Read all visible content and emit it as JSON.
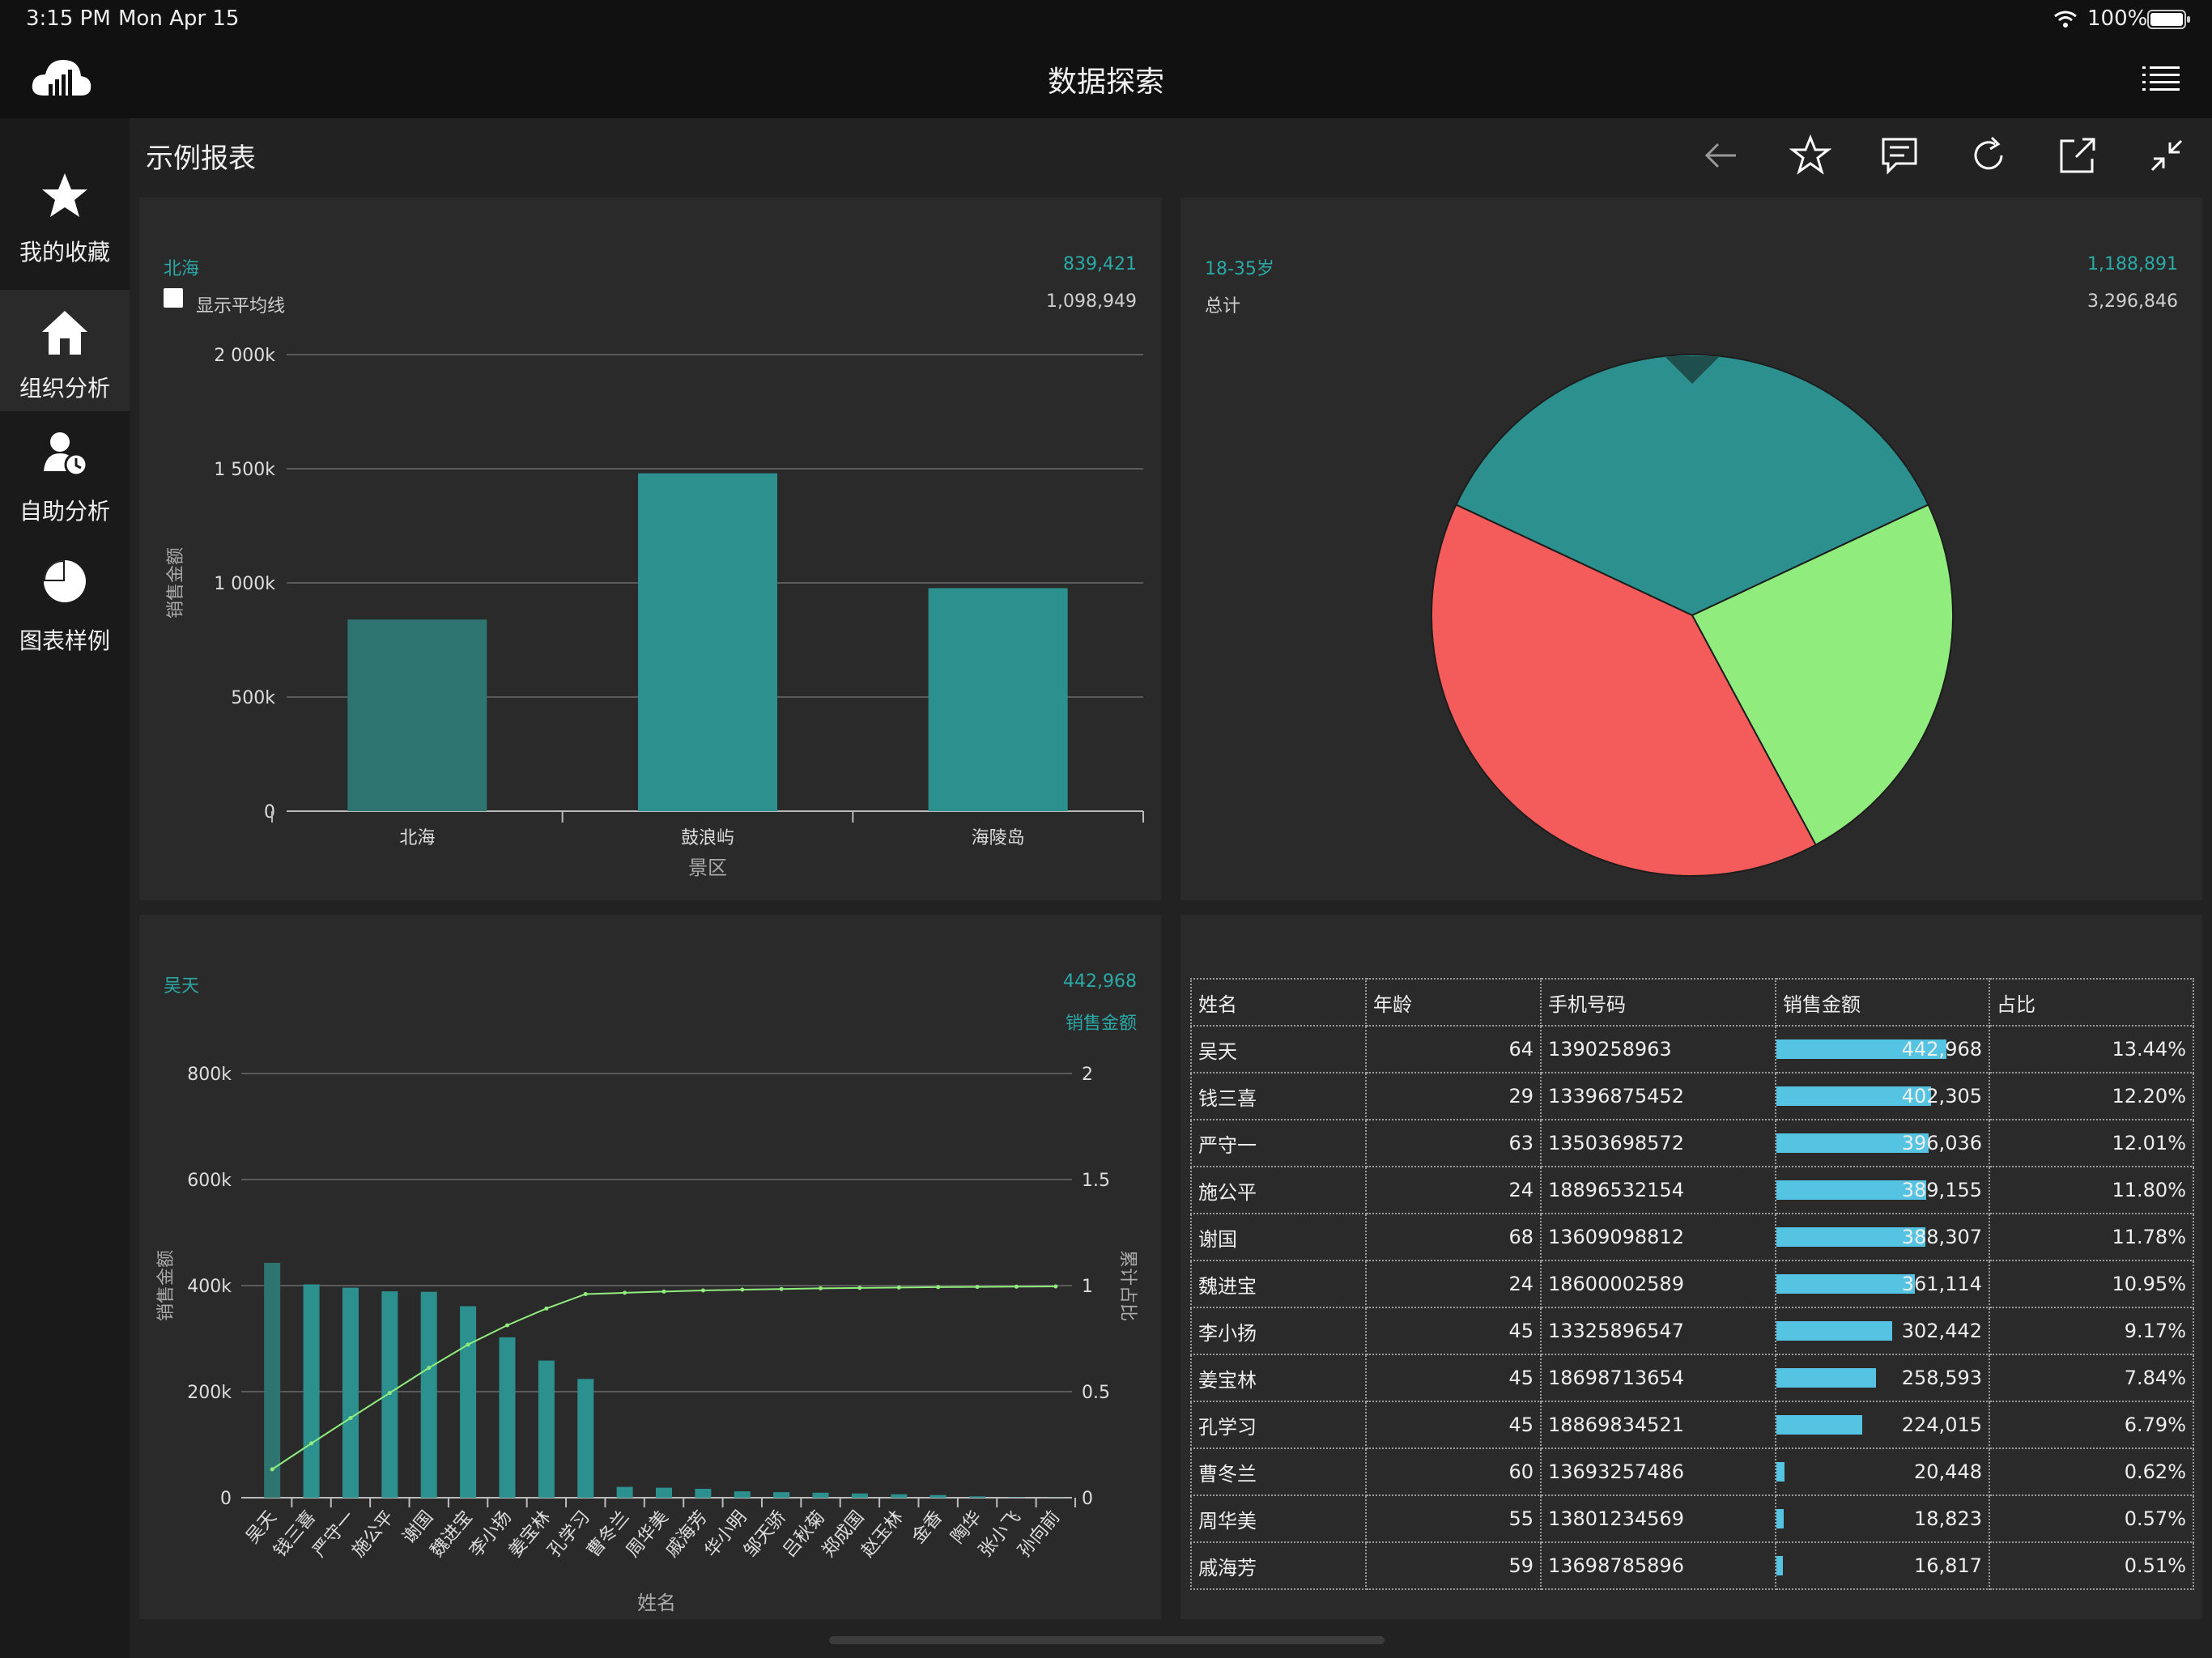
{
  "status_bar": {
    "time": "3:15 PM",
    "date": "Mon Apr 15",
    "battery": "100%"
  },
  "header": {
    "title": "数据探索",
    "logo_icon": "cloud-chart-icon",
    "menu_icon": "list-menu-icon"
  },
  "sidebar": {
    "items": [
      {
        "label": "我的收藏",
        "icon": "star-icon",
        "active": false
      },
      {
        "label": "组织分析",
        "icon": "home-icon",
        "active": true
      },
      {
        "label": "自助分析",
        "icon": "user-clock-icon",
        "active": false
      },
      {
        "label": "图表样例",
        "icon": "pie-icon",
        "active": false
      }
    ]
  },
  "report": {
    "title": "示例报表",
    "tools": [
      "back-arrow-icon",
      "star-outline-icon",
      "comment-icon",
      "refresh-icon",
      "share-icon",
      "collapse-icon"
    ]
  },
  "bar_panel": {
    "hover_label": "北海",
    "hover_value": "839,421",
    "checkbox_label": "显示平均线",
    "total_value": "1,098,949"
  },
  "pie_panel": {
    "hover_label": "18-35岁",
    "hover_value": "1,188,891",
    "total_label": "总计",
    "total_value": "3,296,846"
  },
  "pareto_panel": {
    "hover_label": "吴天",
    "hover_value": "442,968",
    "hover_series": "销售金额"
  },
  "chart_data": [
    {
      "type": "bar",
      "categories": [
        "北海",
        "鼓浪屿",
        "海陵岛"
      ],
      "values": [
        839421,
        1480000,
        977000
      ],
      "xlabel": "景区",
      "ylabel": "销售金额",
      "ylim": [
        0,
        2000000
      ],
      "yticks": [
        "0",
        "500k",
        "1 000k",
        "1 500k",
        "2 000k"
      ],
      "colors": [
        "#2e7571",
        "#2b908e",
        "#2b908e"
      ],
      "grid": true
    },
    {
      "type": "pie",
      "slices": [
        {
          "value": 1188891,
          "color": "#2b908e"
        },
        {
          "value": 795000,
          "color": "#90ed7d"
        },
        {
          "value": 1312955,
          "color": "#f45b5b"
        }
      ]
    },
    {
      "type": "bar",
      "xlabel": "姓名",
      "ylabel": "销售金额",
      "y2label": "累计占比",
      "ylim": [
        0,
        800000
      ],
      "y2lim": [
        0,
        2
      ],
      "yticks": [
        "0",
        "200k",
        "400k",
        "600k",
        "800k"
      ],
      "y2ticks": [
        "0",
        "0.5",
        "1",
        "1.5",
        "2"
      ],
      "categories": [
        "吴天",
        "钱三喜",
        "严守一",
        "施公平",
        "谢国",
        "魏进宝",
        "李小扬",
        "姜宝林",
        "孔学习",
        "曹冬兰",
        "周华美",
        "戚海芳",
        "华小明",
        "邹天骄",
        "吕秋菊",
        "郑成国",
        "赵玉林",
        "金香",
        "陶华",
        "张小飞",
        "孙向前"
      ],
      "series": [
        {
          "type": "bar",
          "values": [
            442968,
            402305,
            396036,
            389155,
            388307,
            361114,
            302442,
            258593,
            224015,
            20448,
            18823,
            16817,
            12000,
            10500,
            9500,
            8000,
            6500,
            5000,
            2500,
            600,
            300
          ]
        },
        {
          "type": "line",
          "axis": "y2",
          "color": "#90ed7d",
          "values": [
            0.134,
            0.256,
            0.376,
            0.494,
            0.612,
            0.722,
            0.813,
            0.892,
            0.96,
            0.966,
            0.972,
            0.977,
            0.981,
            0.984,
            0.987,
            0.989,
            0.991,
            0.993,
            0.994,
            0.995,
            0.996
          ]
        }
      ],
      "grid": true
    }
  ],
  "table": {
    "headers": [
      "姓名",
      "年龄",
      "手机号码",
      "销售金额",
      "占比"
    ],
    "rows": [
      {
        "name": "吴天",
        "age": "64",
        "phone": "1390258963",
        "sales": "442,968",
        "ratio": "13.44%",
        "pct": 1.0
      },
      {
        "name": "钱三喜",
        "age": "29",
        "phone": "13396875452",
        "sales": "402,305",
        "ratio": "12.20%",
        "pct": 0.908
      },
      {
        "name": "严守一",
        "age": "63",
        "phone": "13503698572",
        "sales": "396,036",
        "ratio": "12.01%",
        "pct": 0.894
      },
      {
        "name": "施公平",
        "age": "24",
        "phone": "18896532154",
        "sales": "389,155",
        "ratio": "11.80%",
        "pct": 0.879
      },
      {
        "name": "谢国",
        "age": "68",
        "phone": "13609098812",
        "sales": "388,307",
        "ratio": "11.78%",
        "pct": 0.877
      },
      {
        "name": "魏进宝",
        "age": "24",
        "phone": "18600002589",
        "sales": "361,114",
        "ratio": "10.95%",
        "pct": 0.815
      },
      {
        "name": "李小扬",
        "age": "45",
        "phone": "13325896547",
        "sales": "302,442",
        "ratio": "9.17%",
        "pct": 0.683
      },
      {
        "name": "姜宝林",
        "age": "45",
        "phone": "18698713654",
        "sales": "258,593",
        "ratio": "7.84%",
        "pct": 0.584
      },
      {
        "name": "孔学习",
        "age": "45",
        "phone": "18869834521",
        "sales": "224,015",
        "ratio": "6.79%",
        "pct": 0.506
      },
      {
        "name": "曹冬兰",
        "age": "60",
        "phone": "13693257486",
        "sales": "20,448",
        "ratio": "0.62%",
        "pct": 0.046
      },
      {
        "name": "周华美",
        "age": "55",
        "phone": "13801234569",
        "sales": "18,823",
        "ratio": "0.57%",
        "pct": 0.042
      },
      {
        "name": "戚海芳",
        "age": "59",
        "phone": "13698785896",
        "sales": "16,817",
        "ratio": "0.51%",
        "pct": 0.038
      }
    ]
  }
}
